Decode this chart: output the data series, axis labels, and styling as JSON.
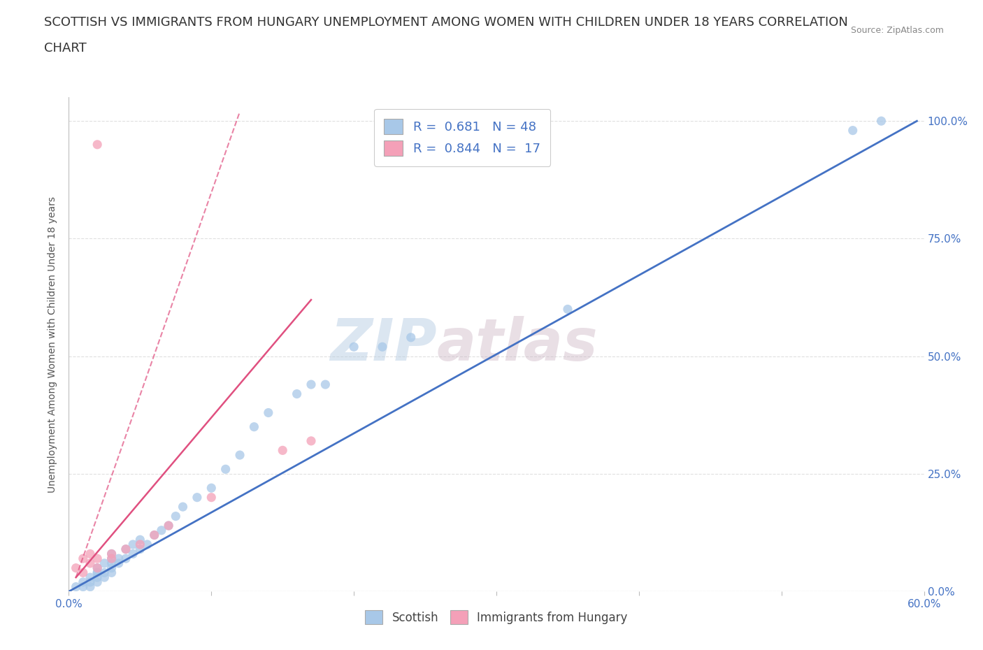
{
  "title_line1": "SCOTTISH VS IMMIGRANTS FROM HUNGARY UNEMPLOYMENT AMONG WOMEN WITH CHILDREN UNDER 18 YEARS CORRELATION",
  "title_line2": "CHART",
  "source_text": "Source: ZipAtlas.com",
  "xlabel": "",
  "ylabel": "Unemployment Among Women with Children Under 18 years",
  "xlim": [
    0,
    0.6
  ],
  "ylim": [
    0,
    1.05
  ],
  "xticks": [
    0.0,
    0.1,
    0.2,
    0.3,
    0.4,
    0.5,
    0.6
  ],
  "xticklabels": [
    "0.0%",
    "",
    "",
    "",
    "",
    "",
    "60.0%"
  ],
  "yticks": [
    0.0,
    0.25,
    0.5,
    0.75,
    1.0
  ],
  "yticklabels": [
    "0.0%",
    "25.0%",
    "50.0%",
    "75.0%",
    "100.0%"
  ],
  "blue_scatter_x": [
    0.005,
    0.01,
    0.01,
    0.015,
    0.015,
    0.015,
    0.02,
    0.02,
    0.02,
    0.02,
    0.02,
    0.025,
    0.025,
    0.025,
    0.03,
    0.03,
    0.03,
    0.03,
    0.03,
    0.035,
    0.035,
    0.04,
    0.04,
    0.045,
    0.045,
    0.05,
    0.05,
    0.055,
    0.06,
    0.065,
    0.07,
    0.075,
    0.08,
    0.09,
    0.1,
    0.11,
    0.12,
    0.13,
    0.14,
    0.16,
    0.17,
    0.18,
    0.2,
    0.22,
    0.24,
    0.35,
    0.55,
    0.57
  ],
  "blue_scatter_y": [
    0.01,
    0.01,
    0.02,
    0.01,
    0.02,
    0.03,
    0.02,
    0.03,
    0.04,
    0.04,
    0.05,
    0.03,
    0.04,
    0.06,
    0.04,
    0.05,
    0.06,
    0.07,
    0.08,
    0.06,
    0.07,
    0.07,
    0.09,
    0.08,
    0.1,
    0.09,
    0.11,
    0.1,
    0.12,
    0.13,
    0.14,
    0.16,
    0.18,
    0.2,
    0.22,
    0.26,
    0.29,
    0.35,
    0.38,
    0.42,
    0.44,
    0.44,
    0.52,
    0.52,
    0.54,
    0.6,
    0.98,
    1.0
  ],
  "blue_color": "#a8c8e8",
  "blue_line_color": "#4472c4",
  "blue_line_x0": 0.0,
  "blue_line_y0": 0.0,
  "blue_line_x1": 0.595,
  "blue_line_y1": 1.0,
  "blue_R": 0.681,
  "blue_N": 48,
  "pink_scatter_x": [
    0.005,
    0.01,
    0.01,
    0.015,
    0.015,
    0.02,
    0.02,
    0.02,
    0.03,
    0.03,
    0.04,
    0.05,
    0.06,
    0.07,
    0.1,
    0.15,
    0.17
  ],
  "pink_scatter_y": [
    0.05,
    0.04,
    0.07,
    0.06,
    0.08,
    0.05,
    0.07,
    0.95,
    0.07,
    0.08,
    0.09,
    0.1,
    0.12,
    0.14,
    0.2,
    0.3,
    0.32
  ],
  "pink_color": "#f4a0b8",
  "pink_line_color": "#e05080",
  "pink_line_solid_x0": 0.005,
  "pink_line_solid_y0": 0.03,
  "pink_line_solid_x1": 0.17,
  "pink_line_solid_y1": 0.62,
  "pink_line_dash_x0": 0.005,
  "pink_line_dash_y0": 0.03,
  "pink_line_dash_x1": 0.12,
  "pink_line_dash_y1": 1.02,
  "pink_R": 0.844,
  "pink_N": 17,
  "watermark_line1": "ZIP",
  "watermark_line2": "atlas",
  "legend_blue_label": "R =  0.681   N = 48",
  "legend_pink_label": "R =  0.844   N =  17",
  "grid_color": "#e0e0e0",
  "background_color": "#ffffff",
  "title_fontsize": 13,
  "axis_label_fontsize": 10,
  "tick_fontsize": 11
}
